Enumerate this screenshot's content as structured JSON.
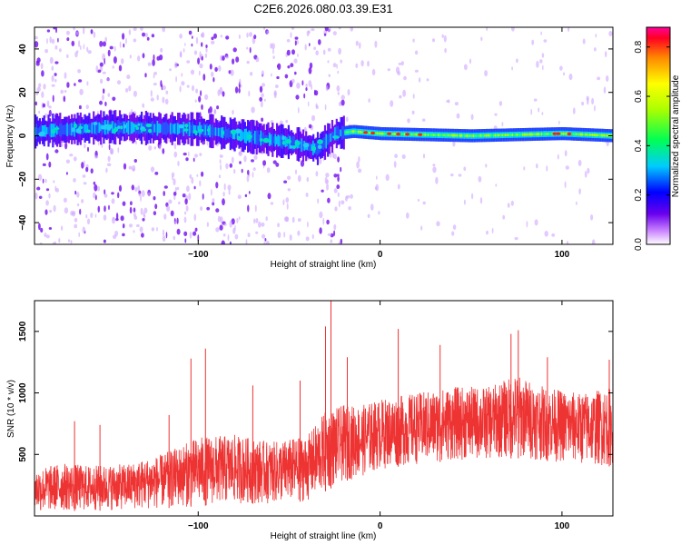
{
  "title": "C2E6.2026.080.03.39.E31",
  "chart_data": [
    {
      "type": "heatmap",
      "xlabel": "Height of straight line (km)",
      "ylabel": "Frequency (Hz)",
      "xlim": [
        -190,
        128
      ],
      "ylim": [
        -50,
        50
      ],
      "xticks": [
        -100,
        0,
        100
      ],
      "yticks": [
        -40,
        -20,
        0,
        20,
        40
      ],
      "colorbar": {
        "label": "Normalized spectral amplitude",
        "range": [
          0,
          0.88
        ],
        "ticks": [
          0.0,
          0.2,
          0.4,
          0.6,
          0.8
        ]
      },
      "band_center_hz": [
        {
          "x": -190,
          "y": 2
        },
        {
          "x": -150,
          "y": 4
        },
        {
          "x": -100,
          "y": 3
        },
        {
          "x": -75,
          "y": 0
        },
        {
          "x": -50,
          "y": -3
        },
        {
          "x": -35,
          "y": -6
        },
        {
          "x": -25,
          "y": 1
        },
        {
          "x": -15,
          "y": 2
        },
        {
          "x": 0,
          "y": 1
        },
        {
          "x": 50,
          "y": 0
        },
        {
          "x": 100,
          "y": 1
        },
        {
          "x": 128,
          "y": 0
        }
      ]
    },
    {
      "type": "line",
      "xlabel": "Height of straight line (km)",
      "ylabel": "SNR (10 * v/v)",
      "xlim": [
        -190,
        128
      ],
      "ylim": [
        0,
        1750
      ],
      "xticks": [
        -100,
        0,
        100
      ],
      "yticks": [
        500,
        1000,
        1500
      ],
      "color": "#ee3333",
      "envelope": [
        {
          "x": -190,
          "lo": 30,
          "hi": 380
        },
        {
          "x": -175,
          "lo": 40,
          "hi": 430
        },
        {
          "x": -160,
          "lo": 40,
          "hi": 410
        },
        {
          "x": -140,
          "lo": 50,
          "hi": 420
        },
        {
          "x": -120,
          "lo": 60,
          "hi": 500
        },
        {
          "x": -100,
          "lo": 80,
          "hi": 640
        },
        {
          "x": -80,
          "lo": 100,
          "hi": 660
        },
        {
          "x": -60,
          "lo": 100,
          "hi": 600
        },
        {
          "x": -40,
          "lo": 120,
          "hi": 650
        },
        {
          "x": -30,
          "lo": 200,
          "hi": 850
        },
        {
          "x": -20,
          "lo": 280,
          "hi": 900
        },
        {
          "x": -10,
          "lo": 320,
          "hi": 900
        },
        {
          "x": 0,
          "lo": 380,
          "hi": 950
        },
        {
          "x": 20,
          "lo": 420,
          "hi": 1000
        },
        {
          "x": 40,
          "lo": 450,
          "hi": 1050
        },
        {
          "x": 60,
          "lo": 460,
          "hi": 1050
        },
        {
          "x": 75,
          "lo": 470,
          "hi": 1150
        },
        {
          "x": 90,
          "lo": 450,
          "hi": 1050
        },
        {
          "x": 110,
          "lo": 420,
          "hi": 1000
        },
        {
          "x": 128,
          "lo": 400,
          "hi": 1050
        }
      ],
      "spikes": [
        {
          "x": -168,
          "y": 770
        },
        {
          "x": -154,
          "y": 740
        },
        {
          "x": -116,
          "y": 820
        },
        {
          "x": -104,
          "y": 1280
        },
        {
          "x": -96,
          "y": 1360
        },
        {
          "x": -70,
          "y": 1060
        },
        {
          "x": -44,
          "y": 1100
        },
        {
          "x": -30,
          "y": 1540
        },
        {
          "x": -27,
          "y": 1750
        },
        {
          "x": -18,
          "y": 1290
        },
        {
          "x": 10,
          "y": 1520
        },
        {
          "x": 33,
          "y": 1390
        },
        {
          "x": 72,
          "y": 1480
        },
        {
          "x": 76,
          "y": 1510
        },
        {
          "x": 92,
          "y": 1290
        },
        {
          "x": 126,
          "y": 1270
        }
      ]
    }
  ]
}
